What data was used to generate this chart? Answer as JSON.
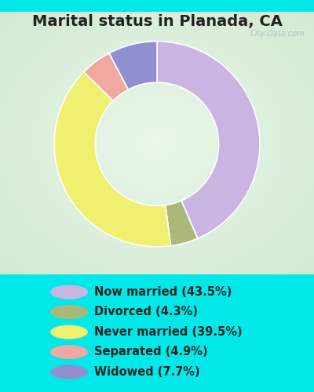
{
  "title": "Marital status in Planada, CA",
  "slices": [
    43.5,
    4.3,
    39.5,
    4.9,
    7.7
  ],
  "labels": [
    "Now married (43.5%)",
    "Divorced (4.3%)",
    "Never married (39.5%)",
    "Separated (4.9%)",
    "Widowed (7.7%)"
  ],
  "colors": [
    "#c9b4e2",
    "#aab87a",
    "#f0f070",
    "#f0a8a0",
    "#9090d0"
  ],
  "bg_outer": "#00e8e8",
  "bg_chart_color": "#c8e8d0",
  "title_fontsize": 14,
  "title_color": "#222222",
  "legend_fontsize": 10.5,
  "donut_width": 0.4,
  "start_angle": 90,
  "watermark": "City-Data.com"
}
